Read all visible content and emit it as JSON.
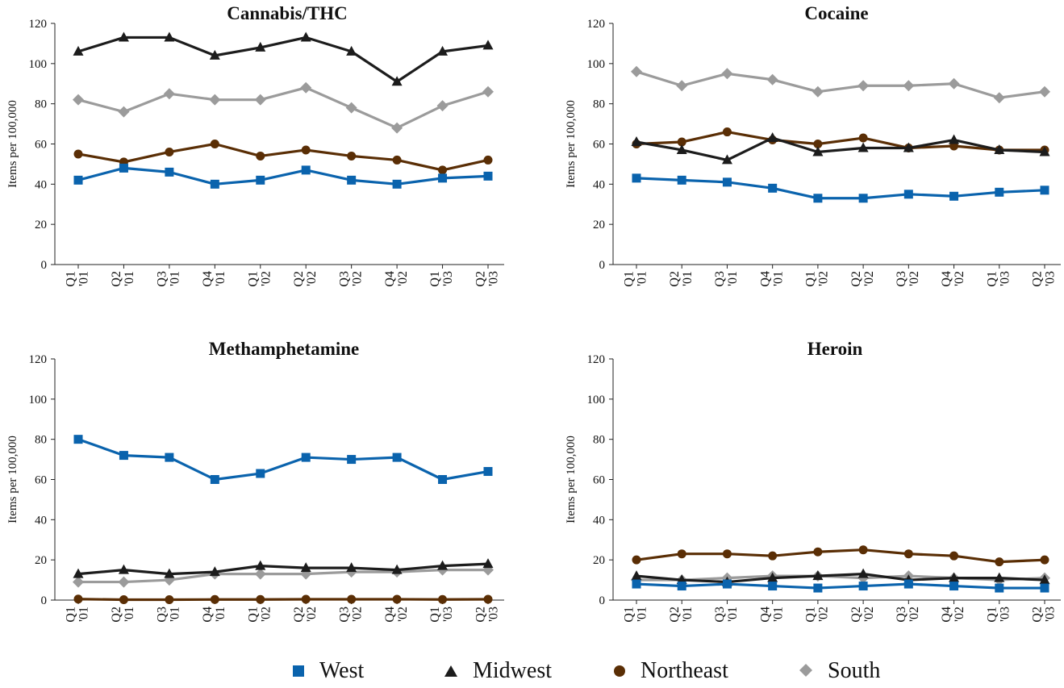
{
  "colors": {
    "West": "#0a63ad",
    "Midwest": "#1c1c1c",
    "Northeast": "#5a2e05",
    "South": "#9b9b9b"
  },
  "legend": [
    {
      "name": "West",
      "marker": "square"
    },
    {
      "name": "Midwest",
      "marker": "triangle"
    },
    {
      "name": "Northeast",
      "marker": "circle"
    },
    {
      "name": "South",
      "marker": "diamond"
    }
  ],
  "chart_data": [
    {
      "type": "line",
      "title": "Cannabis/THC",
      "ylabel": "Items per 100,000",
      "ylim": [
        0,
        120
      ],
      "yticks": [
        "0",
        "20",
        "40",
        "60",
        "80",
        "100",
        "120"
      ],
      "categories": [
        [
          "Q1",
          "'01"
        ],
        [
          "Q2",
          "'01"
        ],
        [
          "Q3",
          "'01"
        ],
        [
          "Q4",
          "'01"
        ],
        [
          "Q1",
          "'02"
        ],
        [
          "Q2",
          "'02"
        ],
        [
          "Q3",
          "'02"
        ],
        [
          "Q4",
          "'02"
        ],
        [
          "Q1",
          "'03"
        ],
        [
          "Q2",
          "'03"
        ]
      ],
      "series": [
        {
          "name": "West",
          "values": [
            42,
            48,
            46,
            40,
            42,
            47,
            42,
            40,
            43,
            44
          ]
        },
        {
          "name": "Midwest",
          "values": [
            106,
            113,
            113,
            104,
            108,
            113,
            106,
            91,
            106,
            109
          ]
        },
        {
          "name": "Northeast",
          "values": [
            55,
            51,
            56,
            60,
            54,
            57,
            54,
            52,
            47,
            52
          ]
        },
        {
          "name": "South",
          "values": [
            82,
            76,
            85,
            82,
            82,
            88,
            78,
            68,
            79,
            86
          ]
        }
      ]
    },
    {
      "type": "line",
      "title": "Cocaine",
      "ylabel": "Items per 100,000",
      "ylim": [
        0,
        120
      ],
      "yticks": [
        "0",
        "20",
        "40",
        "60",
        "80",
        "100",
        "120"
      ],
      "categories": [
        [
          "Q1",
          "'01"
        ],
        [
          "Q2",
          "'01"
        ],
        [
          "Q3",
          "'01"
        ],
        [
          "Q4",
          "'01"
        ],
        [
          "Q1",
          "'02"
        ],
        [
          "Q2",
          "'02"
        ],
        [
          "Q3",
          "'02"
        ],
        [
          "Q4",
          "'02"
        ],
        [
          "Q1",
          "'03"
        ],
        [
          "Q2",
          "'03"
        ]
      ],
      "series": [
        {
          "name": "West",
          "values": [
            43,
            42,
            41,
            38,
            33,
            33,
            35,
            34,
            36,
            37
          ]
        },
        {
          "name": "Midwest",
          "values": [
            61,
            57,
            52,
            63,
            56,
            58,
            58,
            62,
            57,
            56
          ]
        },
        {
          "name": "Northeast",
          "values": [
            60,
            61,
            66,
            62,
            60,
            63,
            58,
            59,
            57,
            57
          ]
        },
        {
          "name": "South",
          "values": [
            96,
            89,
            95,
            92,
            86,
            89,
            89,
            90,
            83,
            86
          ]
        }
      ]
    },
    {
      "type": "line",
      "title": "Methamphetamine",
      "ylabel": "Items per 100,000",
      "ylim": [
        0,
        120
      ],
      "yticks": [
        "0",
        "20",
        "40",
        "60",
        "80",
        "100",
        "120"
      ],
      "categories": [
        [
          "Q1",
          "'01"
        ],
        [
          "Q2",
          "'01"
        ],
        [
          "Q3",
          "'01"
        ],
        [
          "Q4",
          "'01"
        ],
        [
          "Q1",
          "'02"
        ],
        [
          "Q2",
          "'02"
        ],
        [
          "Q3",
          "'02"
        ],
        [
          "Q4",
          "'02"
        ],
        [
          "Q1",
          "'03"
        ],
        [
          "Q2",
          "'03"
        ]
      ],
      "series": [
        {
          "name": "West",
          "values": [
            80,
            72,
            71,
            60,
            63,
            71,
            70,
            71,
            60,
            64
          ]
        },
        {
          "name": "Midwest",
          "values": [
            13,
            15,
            13,
            14,
            17,
            16,
            16,
            15,
            17,
            18
          ]
        },
        {
          "name": "Northeast",
          "values": [
            0.5,
            0.2,
            0.2,
            0.3,
            0.3,
            0.4,
            0.4,
            0.4,
            0.3,
            0.4
          ]
        },
        {
          "name": "South",
          "values": [
            9,
            9,
            10,
            13,
            13,
            13,
            14,
            14,
            15,
            15
          ]
        }
      ]
    },
    {
      "type": "line",
      "title": "Heroin",
      "ylabel": "Items per 100,000",
      "ylim": [
        0,
        120
      ],
      "yticks": [
        "0",
        "20",
        "40",
        "60",
        "80",
        "100",
        "120"
      ],
      "categories": [
        [
          "Q1",
          "'01"
        ],
        [
          "Q2",
          "'01"
        ],
        [
          "Q3",
          "'01"
        ],
        [
          "Q4",
          "'01"
        ],
        [
          "Q1",
          "'02"
        ],
        [
          "Q2",
          "'02"
        ],
        [
          "Q3",
          "'02"
        ],
        [
          "Q4",
          "'02"
        ],
        [
          "Q1",
          "'03"
        ],
        [
          "Q2",
          "'03"
        ]
      ],
      "series": [
        {
          "name": "West",
          "values": [
            8,
            7,
            8,
            7,
            6,
            7,
            8,
            7,
            6,
            6
          ]
        },
        {
          "name": "Midwest",
          "values": [
            12,
            10,
            9,
            11,
            12,
            13,
            10,
            11,
            11,
            10
          ]
        },
        {
          "name": "Northeast",
          "values": [
            20,
            23,
            23,
            22,
            24,
            25,
            23,
            22,
            19,
            20
          ]
        },
        {
          "name": "South",
          "values": [
            10,
            10,
            11,
            12,
            12,
            11,
            12,
            11,
            10,
            11
          ]
        }
      ]
    }
  ]
}
